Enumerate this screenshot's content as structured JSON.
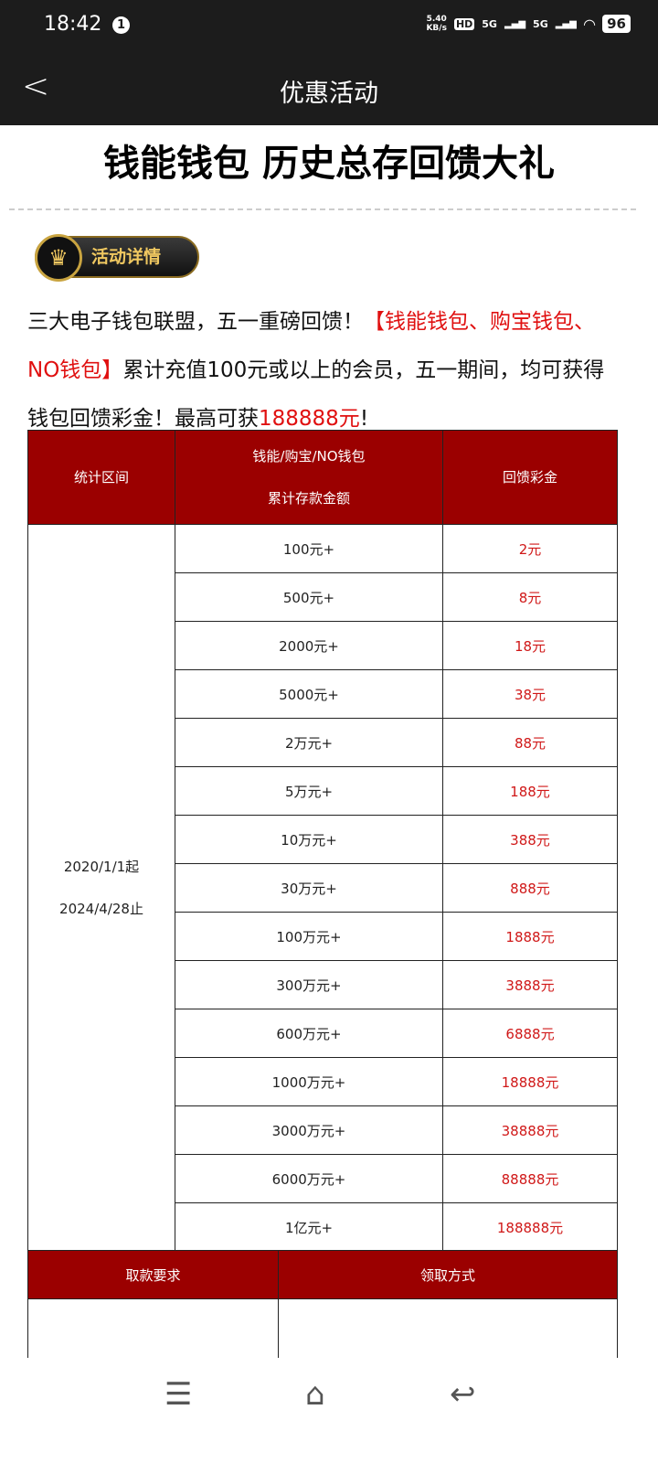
{
  "status_bar": {
    "time": "18:42",
    "notification_count": "1",
    "net_speed": "5.40",
    "net_unit": "KB/s",
    "hd": "HD",
    "sim1": "5G",
    "sim2": "5G",
    "battery": "96"
  },
  "header": {
    "title": "优惠活动",
    "back_icon": "chevron-left-icon"
  },
  "headline": "钱能钱包 历史总存回馈大礼",
  "badge": {
    "label": "活动详情",
    "icon": "crown-emblem-icon"
  },
  "intro": {
    "part1": "三大电子钱包联盟，五一重磅回馈！",
    "part2": "【钱能钱包、购宝钱包、NO钱包】",
    "part3": "累计充值100元或以上的会员，五一期间，均可获得钱包回馈彩金！最高可获",
    "part4": "188888元",
    "part5": "!"
  },
  "table": {
    "headers": [
      "统计区间",
      "钱能/购宝/NO钱包",
      "累计存款金额",
      "回馈彩金"
    ],
    "period": [
      "2020/1/1起",
      "2024/4/28止"
    ],
    "rows": [
      {
        "deposit": "100元+",
        "bonus": "2元"
      },
      {
        "deposit": "500元+",
        "bonus": "8元"
      },
      {
        "deposit": "2000元+",
        "bonus": "18元"
      },
      {
        "deposit": "5000元+",
        "bonus": "38元"
      },
      {
        "deposit": "2万元+",
        "bonus": "88元"
      },
      {
        "deposit": "5万元+",
        "bonus": "188元"
      },
      {
        "deposit": "10万元+",
        "bonus": "388元"
      },
      {
        "deposit": "30万元+",
        "bonus": "888元"
      },
      {
        "deposit": "100万元+",
        "bonus": "1888元"
      },
      {
        "deposit": "300万元+",
        "bonus": "3888元"
      },
      {
        "deposit": "600万元+",
        "bonus": "6888元"
      },
      {
        "deposit": "1000万元+",
        "bonus": "18888元"
      },
      {
        "deposit": "3000万元+",
        "bonus": "38888元"
      },
      {
        "deposit": "6000万元+",
        "bonus": "88888元"
      },
      {
        "deposit": "1亿元+",
        "bonus": "188888元"
      }
    ]
  },
  "table2": {
    "headers": [
      "取款要求",
      "领取方式"
    ]
  },
  "colors": {
    "header_red": "#9b0000",
    "accent_red": "#e01010",
    "dark_bar": "#1c1c1c"
  },
  "nav": {
    "menu": "menu-icon",
    "home": "home-icon",
    "back": "back-icon"
  }
}
